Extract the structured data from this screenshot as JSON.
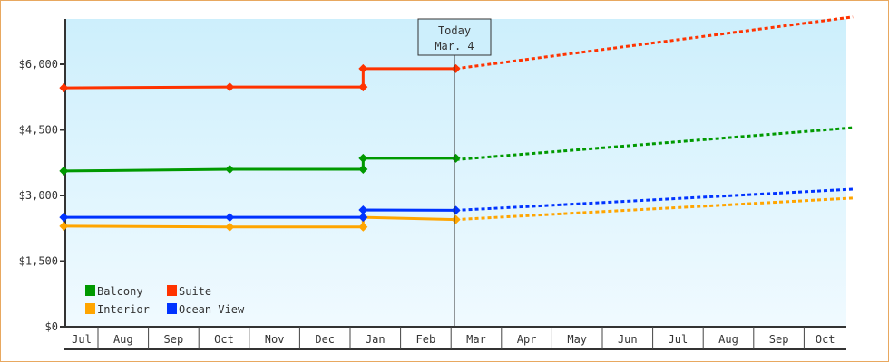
{
  "chart_data": {
    "type": "line",
    "title": "",
    "xlabel": "",
    "ylabel": "",
    "ylim": [
      0,
      7000
    ],
    "y_ticks": [
      0,
      1500,
      3000,
      4500,
      6000
    ],
    "y_tick_labels": [
      "$0",
      "$1,500",
      "$3,000",
      "$4,500",
      "$6,000"
    ],
    "x_tick_labels": [
      "Jul",
      "Aug",
      "Sep",
      "Oct",
      "Nov",
      "Dec",
      "Jan",
      "Feb",
      "Mar",
      "Apr",
      "May",
      "Jun",
      "Jul",
      "Aug",
      "Sep",
      "Oct"
    ],
    "x_range": [
      "Jul 11",
      "Oct 31"
    ],
    "grid": false,
    "legend_position": "bottom-left",
    "today_marker": {
      "title": "Today",
      "date_label": "Mar. 4",
      "x": "Mar 4"
    },
    "background": {
      "top": "#cdeffc",
      "bottom": "#f0faff"
    },
    "series": [
      {
        "name": "Balcony",
        "color": "#009900",
        "actual": [
          [
            "Jul 11",
            3560
          ],
          [
            "Oct 20",
            3600
          ],
          [
            "Jan 9",
            3600
          ],
          [
            "Jan 9",
            3850
          ],
          [
            "Mar 4",
            3850
          ]
        ],
        "projected": [
          [
            "Mar 4",
            3820
          ],
          [
            "Oct 31",
            4550
          ]
        ]
      },
      {
        "name": "Suite",
        "color": "#ff3300",
        "actual": [
          [
            "Jul 11",
            5460
          ],
          [
            "Oct 20",
            5480
          ],
          [
            "Jan 9",
            5480
          ],
          [
            "Jan 9",
            5900
          ],
          [
            "Mar 4",
            5900
          ]
        ],
        "projected": [
          [
            "Mar 4",
            5900
          ],
          [
            "Oct 31",
            7080
          ]
        ]
      },
      {
        "name": "Interior",
        "color": "#ffa500",
        "actual": [
          [
            "Jul 11",
            2300
          ],
          [
            "Oct 20",
            2280
          ],
          [
            "Jan 9",
            2280
          ],
          [
            "Jan 9",
            2500
          ],
          [
            "Mar 4",
            2450
          ]
        ],
        "projected": [
          [
            "Mar 4",
            2450
          ],
          [
            "Oct 31",
            2940
          ]
        ]
      },
      {
        "name": "Ocean View",
        "color": "#0033ff",
        "actual": [
          [
            "Jul 11",
            2500
          ],
          [
            "Oct 20",
            2500
          ],
          [
            "Jan 9",
            2500
          ],
          [
            "Jan 9",
            2670
          ],
          [
            "Mar 4",
            2660
          ]
        ],
        "projected": [
          [
            "Mar 4",
            2660
          ],
          [
            "Oct 31",
            3145
          ]
        ]
      }
    ]
  }
}
